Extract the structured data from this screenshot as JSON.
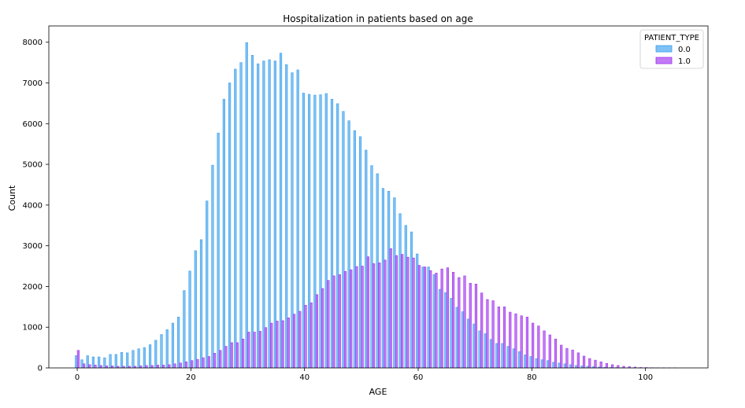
{
  "chart_data": {
    "type": "bar",
    "title": "Hospitalization in patients based on age",
    "xlabel": "AGE",
    "ylabel": "Count",
    "xlim": [
      -5,
      111
    ],
    "ylim": [
      0,
      8400
    ],
    "xticks": [
      0,
      20,
      40,
      60,
      80,
      100
    ],
    "yticks": [
      0,
      1000,
      2000,
      3000,
      4000,
      5000,
      6000,
      7000,
      8000
    ],
    "legend": {
      "title": "PATIENT_TYPE",
      "placement": "top-right"
    },
    "series": [
      {
        "name": "0.0",
        "color": "#3aa0ee",
        "x": [
          0,
          1,
          2,
          3,
          4,
          5,
          6,
          7,
          8,
          9,
          10,
          11,
          12,
          13,
          14,
          15,
          16,
          17,
          18,
          19,
          20,
          21,
          22,
          23,
          24,
          25,
          26,
          27,
          28,
          29,
          30,
          31,
          32,
          33,
          34,
          35,
          36,
          37,
          38,
          39,
          40,
          41,
          42,
          43,
          44,
          45,
          46,
          47,
          48,
          49,
          50,
          51,
          52,
          53,
          54,
          55,
          56,
          57,
          58,
          59,
          60,
          61,
          62,
          63,
          64,
          65,
          66,
          67,
          68,
          69,
          70,
          71,
          72,
          73,
          74,
          75,
          76,
          77,
          78,
          79,
          80,
          81,
          82,
          83,
          84,
          85,
          86,
          87,
          88,
          89,
          90,
          91,
          92,
          93,
          94,
          95,
          96,
          97,
          98,
          99,
          100,
          101,
          102,
          103,
          104,
          105
        ],
        "values": [
          300,
          200,
          300,
          270,
          270,
          250,
          330,
          330,
          380,
          370,
          430,
          470,
          500,
          570,
          680,
          820,
          940,
          1100,
          1250,
          1900,
          2380,
          2880,
          3150,
          4100,
          4980,
          5770,
          6600,
          7000,
          7340,
          7500,
          7990,
          7680,
          7470,
          7540,
          7570,
          7540,
          7730,
          7450,
          7250,
          7320,
          6750,
          6720,
          6700,
          6710,
          6740,
          6600,
          6490,
          6300,
          6070,
          5830,
          5680,
          5350,
          4970,
          4770,
          4410,
          4340,
          4180,
          3790,
          3500,
          3340,
          2800,
          2480,
          2480,
          2290,
          1930,
          1850,
          1710,
          1490,
          1380,
          1200,
          1080,
          910,
          840,
          700,
          600,
          600,
          530,
          470,
          400,
          320,
          280,
          230,
          200,
          180,
          140,
          120,
          100,
          80,
          60,
          50,
          40,
          30,
          20,
          15,
          10,
          8,
          5,
          3,
          2,
          2,
          1,
          1,
          1,
          0,
          0,
          0
        ],
        "offset": -0.18
      },
      {
        "name": "1.0",
        "color": "#a033ee",
        "x": [
          0,
          1,
          2,
          3,
          4,
          5,
          6,
          7,
          8,
          9,
          10,
          11,
          12,
          13,
          14,
          15,
          16,
          17,
          18,
          19,
          20,
          21,
          22,
          23,
          24,
          25,
          26,
          27,
          28,
          29,
          30,
          31,
          32,
          33,
          34,
          35,
          36,
          37,
          38,
          39,
          40,
          41,
          42,
          43,
          44,
          45,
          46,
          47,
          48,
          49,
          50,
          51,
          52,
          53,
          54,
          55,
          56,
          57,
          58,
          59,
          60,
          61,
          62,
          63,
          64,
          65,
          66,
          67,
          68,
          69,
          70,
          71,
          72,
          73,
          74,
          75,
          76,
          77,
          78,
          79,
          80,
          81,
          82,
          83,
          84,
          85,
          86,
          87,
          88,
          89,
          90,
          91,
          92,
          93,
          94,
          95,
          96,
          97,
          98,
          99,
          100,
          101,
          102,
          103,
          104,
          105
        ],
        "values": [
          430,
          100,
          80,
          70,
          60,
          50,
          50,
          40,
          40,
          40,
          40,
          50,
          60,
          60,
          70,
          70,
          80,
          100,
          120,
          150,
          180,
          210,
          250,
          280,
          360,
          430,
          530,
          620,
          620,
          710,
          880,
          880,
          900,
          990,
          1100,
          1150,
          1160,
          1230,
          1320,
          1390,
          1540,
          1600,
          1800,
          1950,
          2150,
          2260,
          2290,
          2370,
          2410,
          2490,
          2500,
          2730,
          2560,
          2580,
          2650,
          2930,
          2760,
          2790,
          2720,
          2700,
          2520,
          2480,
          2390,
          2330,
          2430,
          2460,
          2350,
          2220,
          2260,
          2080,
          2060,
          1840,
          1680,
          1650,
          1500,
          1500,
          1370,
          1330,
          1280,
          1250,
          1100,
          1030,
          910,
          810,
          710,
          560,
          480,
          440,
          370,
          290,
          230,
          190,
          150,
          110,
          80,
          60,
          40,
          30,
          20,
          10,
          8,
          5,
          3,
          2,
          1,
          1
        ],
        "offset": 0.18
      }
    ]
  }
}
